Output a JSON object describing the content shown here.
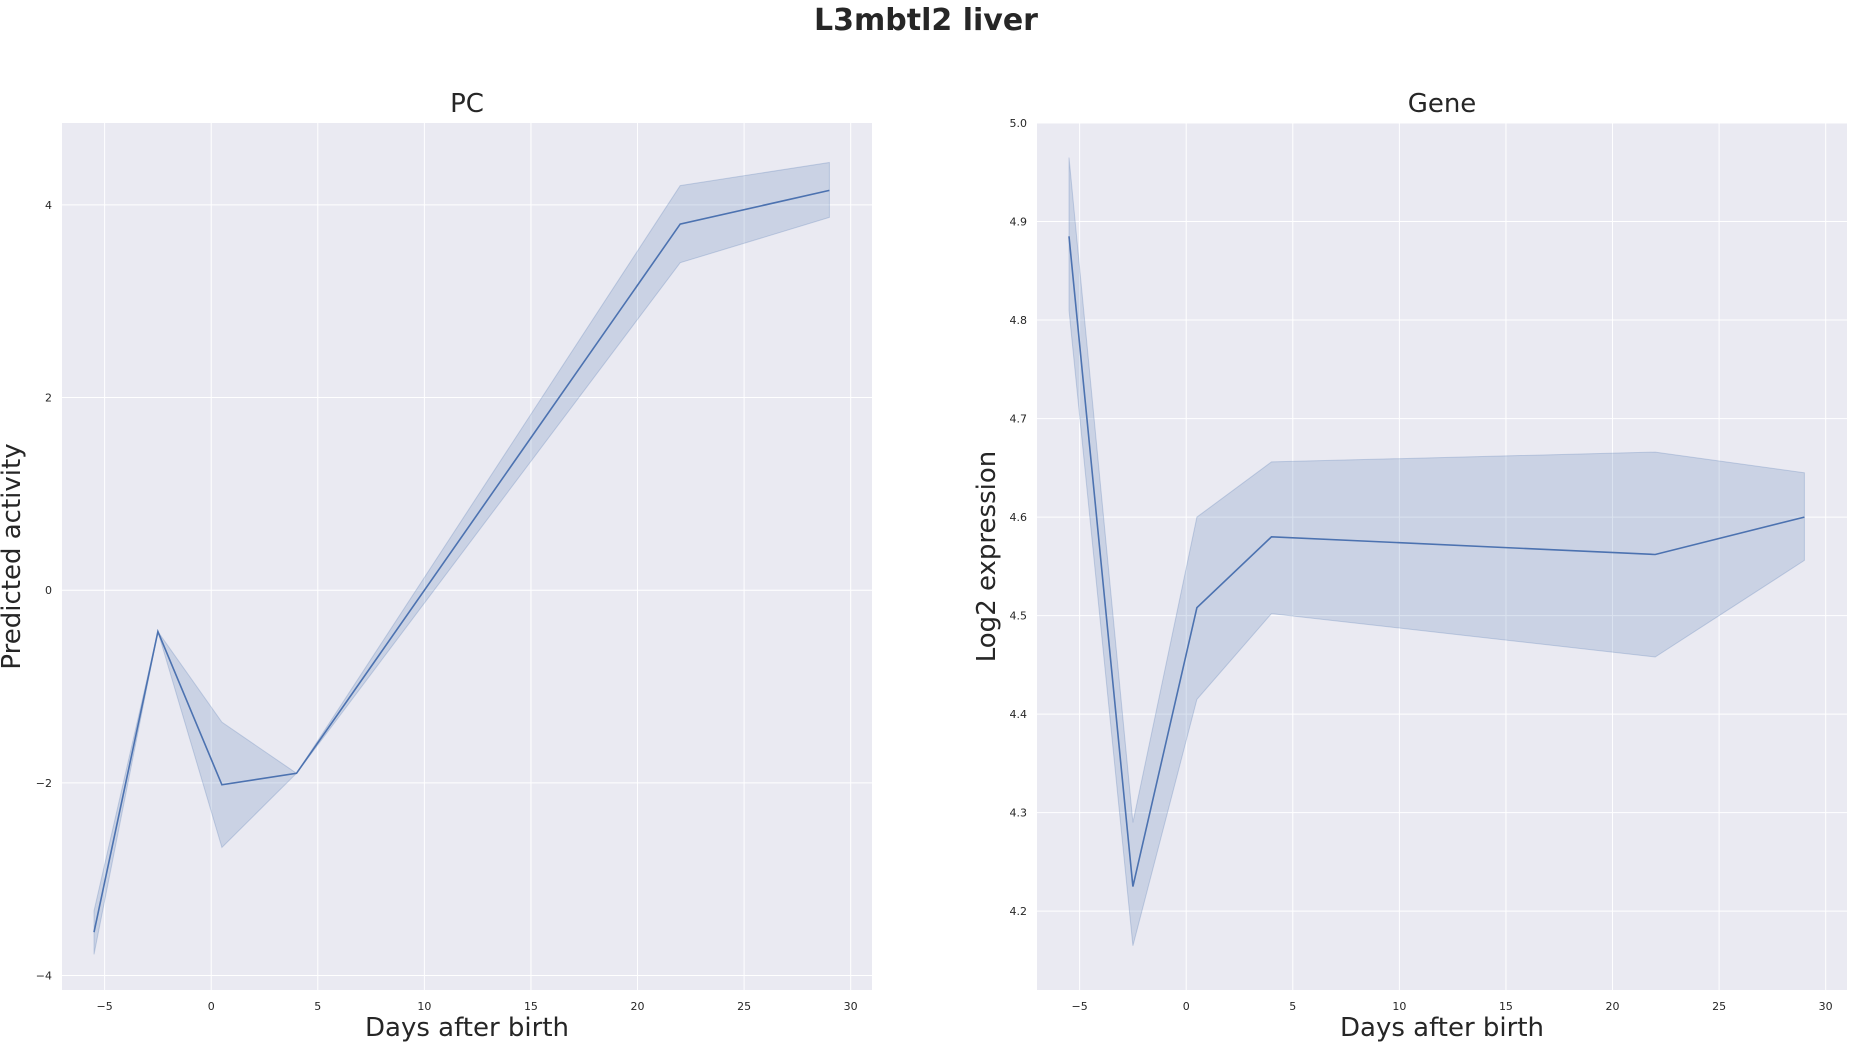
{
  "figure": {
    "title": "L3mbtl2 liver"
  },
  "chart_data": [
    {
      "type": "line",
      "title": "PC",
      "xlabel": "Days after birth",
      "ylabel": "Predicted activity",
      "xlim": [
        -7,
        31
      ],
      "ylim": [
        -4.15,
        4.85
      ],
      "xticks": [
        -5,
        0,
        5,
        10,
        15,
        20,
        25,
        30
      ],
      "xtick_labels": [
        "−5",
        "0",
        "5",
        "10",
        "15",
        "20",
        "25",
        "30"
      ],
      "yticks": [
        -4,
        -2,
        0,
        2,
        4
      ],
      "ytick_labels": [
        "−4",
        "−2",
        "0",
        "2",
        "4"
      ],
      "grid": true,
      "series": [
        {
          "color": "#4c72b0",
          "x": [
            -5.5,
            -2.5,
            0.5,
            4,
            22,
            29
          ],
          "y": [
            -3.55,
            -0.43,
            -2.02,
            -1.9,
            3.8,
            4.15
          ],
          "ci_lower": [
            -3.78,
            -0.43,
            -2.67,
            -1.9,
            3.4,
            3.87
          ],
          "ci_upper": [
            -3.33,
            -0.43,
            -1.37,
            -1.9,
            4.2,
            4.44
          ]
        }
      ]
    },
    {
      "type": "line",
      "title": "Gene",
      "xlabel": "Days after birth",
      "ylabel": "Log2 expression",
      "xlim": [
        -7,
        31
      ],
      "ylim": [
        4.12,
        5.0
      ],
      "xticks": [
        -5,
        0,
        5,
        10,
        15,
        20,
        25,
        30
      ],
      "xtick_labels": [
        "−5",
        "0",
        "5",
        "10",
        "15",
        "20",
        "25",
        "30"
      ],
      "yticks": [
        4.2,
        4.3,
        4.4,
        4.5,
        4.6,
        4.7,
        4.8,
        4.9,
        5.0
      ],
      "ytick_labels": [
        "4.2",
        "4.3",
        "4.4",
        "4.5",
        "4.6",
        "4.7",
        "4.8",
        "4.9",
        "5.0"
      ],
      "grid": true,
      "series": [
        {
          "color": "#4c72b0",
          "x": [
            -5.5,
            -2.5,
            0.5,
            4,
            22,
            29
          ],
          "y": [
            4.885,
            4.225,
            4.508,
            4.58,
            4.562,
            4.6
          ],
          "ci_lower": [
            4.81,
            4.165,
            4.415,
            4.502,
            4.458,
            4.556
          ],
          "ci_upper": [
            4.965,
            4.29,
            4.6,
            4.656,
            4.666,
            4.645
          ]
        }
      ]
    }
  ]
}
